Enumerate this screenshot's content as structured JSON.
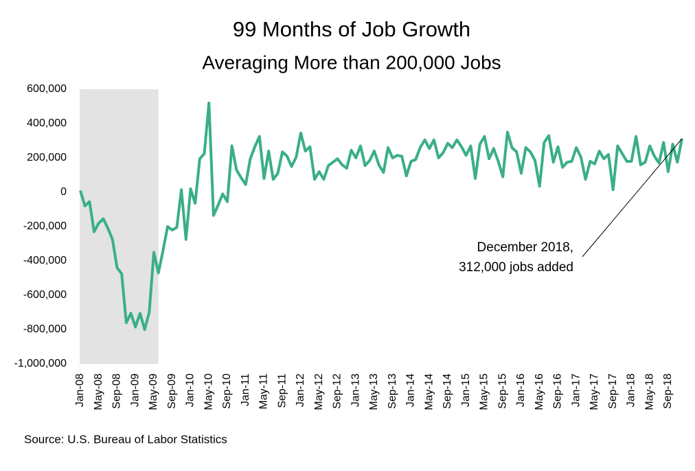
{
  "chart_data": {
    "type": "line",
    "title": "99 Months of Job Growth",
    "subtitle": "Averaging More than 200,000 Jobs",
    "source": "Source: U.S. Bureau of Labor Statistics",
    "annotation": [
      "December 2018,",
      "312,000 jobs added"
    ],
    "color": "#3aaf85",
    "shade_color": "#e3e3e3",
    "shade_span": [
      0,
      17
    ],
    "grid": false,
    "ylim": [
      -1000000,
      600000
    ],
    "yticks": [
      {
        "value": -1000000,
        "label": "-1,000,000"
      },
      {
        "value": -800000,
        "label": "-800,000"
      },
      {
        "value": -600000,
        "label": "-600,000"
      },
      {
        "value": -400000,
        "label": "-400,000"
      },
      {
        "value": -200000,
        "label": "-200,000"
      },
      0,
      {
        "value": 200000,
        "label": "200,000"
      },
      {
        "value": 400000,
        "label": "400,000"
      },
      {
        "value": 600000,
        "label": "600,000"
      }
    ],
    "categories": [
      "Jan-08",
      null,
      null,
      null,
      "May-08",
      null,
      null,
      null,
      "Sep-08",
      null,
      null,
      null,
      "Jan-09",
      null,
      null,
      null,
      "May-09",
      null,
      null,
      null,
      "Sep-09",
      null,
      null,
      null,
      "Jan-10",
      null,
      null,
      null,
      "May-10",
      null,
      null,
      null,
      "Sep-10",
      null,
      null,
      null,
      "Jan-11",
      null,
      null,
      null,
      "May-11",
      null,
      null,
      null,
      "Sep-11",
      null,
      null,
      null,
      "Jan-12",
      null,
      null,
      null,
      "May-12",
      null,
      null,
      null,
      "Sep-12",
      null,
      null,
      null,
      "Jan-13",
      null,
      null,
      null,
      "May-13",
      null,
      null,
      null,
      "Sep-13",
      null,
      null,
      null,
      "Jan-14",
      null,
      null,
      null,
      "May-14",
      null,
      null,
      null,
      "Sep-14",
      null,
      null,
      null,
      "Jan-15",
      null,
      null,
      null,
      "May-15",
      null,
      null,
      null,
      "Sep-15",
      null,
      null,
      null,
      "Jan-16",
      null,
      null,
      null,
      "May-16",
      null,
      null,
      null,
      "Sep-16",
      null,
      null,
      null,
      "Jan-17",
      null,
      null,
      null,
      "May-17",
      null,
      null,
      null,
      "Sep-17",
      null,
      null,
      null,
      "Jan-18",
      null,
      null,
      null,
      "May-18",
      null,
      null,
      null,
      "Sep-18",
      null,
      null,
      null
    ],
    "values": [
      10000,
      -80000,
      -55000,
      -230000,
      -180000,
      -155000,
      -210000,
      -275000,
      -440000,
      -475000,
      -760000,
      -705000,
      -785000,
      -705000,
      -800000,
      -700000,
      -350000,
      -470000,
      -340000,
      -200000,
      -220000,
      -205000,
      15000,
      -275000,
      20000,
      -65000,
      195000,
      225000,
      520000,
      -135000,
      -75000,
      -10000,
      -55000,
      270000,
      130000,
      85000,
      45000,
      195000,
      265000,
      325000,
      80000,
      240000,
      75000,
      110000,
      235000,
      210000,
      150000,
      205000,
      345000,
      240000,
      265000,
      75000,
      120000,
      75000,
      155000,
      175000,
      195000,
      160000,
      140000,
      245000,
      200000,
      270000,
      155000,
      185000,
      240000,
      160000,
      115000,
      260000,
      200000,
      215000,
      210000,
      95000,
      180000,
      190000,
      260000,
      305000,
      255000,
      305000,
      200000,
      230000,
      285000,
      260000,
      305000,
      265000,
      215000,
      270000,
      80000,
      280000,
      325000,
      195000,
      255000,
      180000,
      90000,
      350000,
      260000,
      235000,
      110000,
      260000,
      235000,
      185000,
      35000,
      290000,
      330000,
      175000,
      265000,
      145000,
      175000,
      180000,
      260000,
      205000,
      75000,
      180000,
      165000,
      240000,
      195000,
      220000,
      15000,
      270000,
      225000,
      180000,
      180000,
      325000,
      160000,
      175000,
      270000,
      210000,
      170000,
      290000,
      120000,
      280000,
      175000,
      312000
    ]
  }
}
